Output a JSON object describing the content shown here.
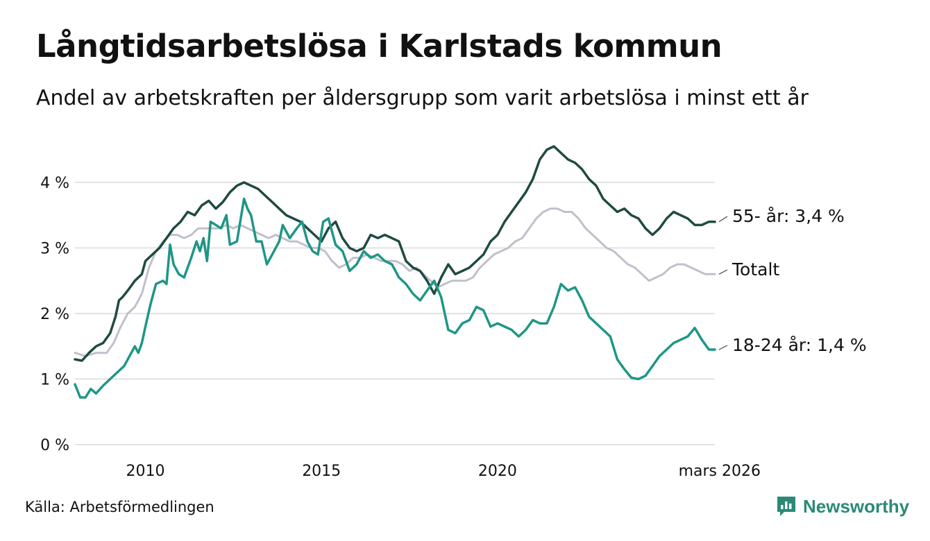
{
  "header": {
    "title": "Långtidsarbetslösa i Karlstads kommun",
    "subtitle": "Andel av arbetskraften per åldersgrupp som varit arbetslösa i minst ett år"
  },
  "footer": {
    "source": "Källa: Arbetsförmedlingen",
    "brand": "Newsworthy",
    "brand_color": "#2a8a77"
  },
  "chart_data": {
    "type": "line",
    "title": "Långtidsarbetslösa i Karlstads kommun",
    "subtitle": "Andel av arbetskraften per åldersgrupp som varit arbetslösa i minst ett år",
    "xlabel": "",
    "ylabel": "",
    "x_range": [
      2008.0,
      2026.17
    ],
    "ylim": [
      0,
      4.6
    ],
    "grid": true,
    "x_ticks": [
      {
        "value": 2010,
        "label": "2010"
      },
      {
        "value": 2015,
        "label": "2015"
      },
      {
        "value": 2020,
        "label": "2020"
      },
      {
        "value": 2026.17,
        "label": "mars 2026"
      }
    ],
    "y_ticks": [
      {
        "value": 0,
        "label": "0 %"
      },
      {
        "value": 1,
        "label": "1 %"
      },
      {
        "value": 2,
        "label": "2 %"
      },
      {
        "value": 3,
        "label": "3 %"
      },
      {
        "value": 4,
        "label": "4 %"
      }
    ],
    "series": [
      {
        "name": "Totalt",
        "label": "Totalt",
        "color": "#c2bfcc",
        "points": [
          [
            2008.0,
            1.4
          ],
          [
            2008.3,
            1.35
          ],
          [
            2008.6,
            1.4
          ],
          [
            2008.9,
            1.4
          ],
          [
            2009.1,
            1.55
          ],
          [
            2009.3,
            1.8
          ],
          [
            2009.5,
            2.0
          ],
          [
            2009.7,
            2.1
          ],
          [
            2009.9,
            2.3
          ],
          [
            2010.0,
            2.5
          ],
          [
            2010.1,
            2.7
          ],
          [
            2010.3,
            2.95
          ],
          [
            2010.5,
            3.1
          ],
          [
            2010.7,
            3.2
          ],
          [
            2010.9,
            3.2
          ],
          [
            2011.1,
            3.15
          ],
          [
            2011.3,
            3.2
          ],
          [
            2011.5,
            3.3
          ],
          [
            2011.7,
            3.3
          ],
          [
            2011.9,
            3.3
          ],
          [
            2012.1,
            3.3
          ],
          [
            2012.3,
            3.35
          ],
          [
            2012.5,
            3.3
          ],
          [
            2012.7,
            3.35
          ],
          [
            2012.9,
            3.3
          ],
          [
            2013.1,
            3.25
          ],
          [
            2013.3,
            3.2
          ],
          [
            2013.5,
            3.15
          ],
          [
            2013.7,
            3.2
          ],
          [
            2013.9,
            3.15
          ],
          [
            2014.1,
            3.1
          ],
          [
            2014.3,
            3.1
          ],
          [
            2014.5,
            3.05
          ],
          [
            2014.7,
            3.0
          ],
          [
            2014.9,
            3.0
          ],
          [
            2015.1,
            2.95
          ],
          [
            2015.3,
            2.8
          ],
          [
            2015.5,
            2.7
          ],
          [
            2015.7,
            2.75
          ],
          [
            2015.9,
            2.85
          ],
          [
            2016.1,
            2.85
          ],
          [
            2016.3,
            2.9
          ],
          [
            2016.5,
            2.85
          ],
          [
            2016.7,
            2.8
          ],
          [
            2016.9,
            2.8
          ],
          [
            2017.1,
            2.8
          ],
          [
            2017.3,
            2.75
          ],
          [
            2017.5,
            2.65
          ],
          [
            2017.7,
            2.7
          ],
          [
            2017.9,
            2.6
          ],
          [
            2018.1,
            2.5
          ],
          [
            2018.3,
            2.4
          ],
          [
            2018.5,
            2.45
          ],
          [
            2018.7,
            2.5
          ],
          [
            2018.9,
            2.5
          ],
          [
            2019.1,
            2.5
          ],
          [
            2019.3,
            2.55
          ],
          [
            2019.5,
            2.7
          ],
          [
            2019.7,
            2.8
          ],
          [
            2019.9,
            2.9
          ],
          [
            2020.1,
            2.95
          ],
          [
            2020.3,
            3.0
          ],
          [
            2020.5,
            3.1
          ],
          [
            2020.7,
            3.15
          ],
          [
            2020.9,
            3.3
          ],
          [
            2021.1,
            3.45
          ],
          [
            2021.3,
            3.55
          ],
          [
            2021.5,
            3.6
          ],
          [
            2021.7,
            3.6
          ],
          [
            2021.9,
            3.55
          ],
          [
            2022.1,
            3.55
          ],
          [
            2022.3,
            3.45
          ],
          [
            2022.5,
            3.3
          ],
          [
            2022.7,
            3.2
          ],
          [
            2022.9,
            3.1
          ],
          [
            2023.1,
            3.0
          ],
          [
            2023.3,
            2.95
          ],
          [
            2023.5,
            2.85
          ],
          [
            2023.7,
            2.75
          ],
          [
            2023.9,
            2.7
          ],
          [
            2024.1,
            2.6
          ],
          [
            2024.3,
            2.5
          ],
          [
            2024.5,
            2.55
          ],
          [
            2024.7,
            2.6
          ],
          [
            2024.9,
            2.7
          ],
          [
            2025.1,
            2.75
          ],
          [
            2025.3,
            2.75
          ],
          [
            2025.5,
            2.7
          ],
          [
            2025.7,
            2.65
          ],
          [
            2025.9,
            2.6
          ],
          [
            2026.17,
            2.6
          ]
        ]
      },
      {
        "name": "55- år",
        "label": "55- år: 3,4 %",
        "color": "#1f4a41",
        "points": [
          [
            2008.0,
            1.3
          ],
          [
            2008.2,
            1.28
          ],
          [
            2008.4,
            1.4
          ],
          [
            2008.6,
            1.5
          ],
          [
            2008.8,
            1.55
          ],
          [
            2009.0,
            1.7
          ],
          [
            2009.15,
            1.95
          ],
          [
            2009.25,
            2.2
          ],
          [
            2009.35,
            2.25
          ],
          [
            2009.5,
            2.35
          ],
          [
            2009.7,
            2.5
          ],
          [
            2009.9,
            2.6
          ],
          [
            2010.0,
            2.8
          ],
          [
            2010.2,
            2.9
          ],
          [
            2010.4,
            3.0
          ],
          [
            2010.6,
            3.15
          ],
          [
            2010.8,
            3.3
          ],
          [
            2011.0,
            3.4
          ],
          [
            2011.2,
            3.55
          ],
          [
            2011.4,
            3.5
          ],
          [
            2011.6,
            3.65
          ],
          [
            2011.8,
            3.72
          ],
          [
            2012.0,
            3.6
          ],
          [
            2012.2,
            3.7
          ],
          [
            2012.4,
            3.85
          ],
          [
            2012.6,
            3.95
          ],
          [
            2012.8,
            4.0
          ],
          [
            2013.0,
            3.95
          ],
          [
            2013.2,
            3.9
          ],
          [
            2013.4,
            3.8
          ],
          [
            2013.6,
            3.7
          ],
          [
            2013.8,
            3.6
          ],
          [
            2014.0,
            3.5
          ],
          [
            2014.2,
            3.45
          ],
          [
            2014.4,
            3.4
          ],
          [
            2014.6,
            3.3
          ],
          [
            2014.8,
            3.2
          ],
          [
            2015.0,
            3.1
          ],
          [
            2015.2,
            3.3
          ],
          [
            2015.4,
            3.4
          ],
          [
            2015.6,
            3.15
          ],
          [
            2015.8,
            3.0
          ],
          [
            2016.0,
            2.95
          ],
          [
            2016.2,
            3.0
          ],
          [
            2016.4,
            3.2
          ],
          [
            2016.6,
            3.15
          ],
          [
            2016.8,
            3.2
          ],
          [
            2017.0,
            3.15
          ],
          [
            2017.2,
            3.1
          ],
          [
            2017.4,
            2.8
          ],
          [
            2017.6,
            2.7
          ],
          [
            2017.8,
            2.65
          ],
          [
            2018.0,
            2.5
          ],
          [
            2018.2,
            2.3
          ],
          [
            2018.4,
            2.55
          ],
          [
            2018.6,
            2.75
          ],
          [
            2018.8,
            2.6
          ],
          [
            2019.0,
            2.65
          ],
          [
            2019.2,
            2.7
          ],
          [
            2019.4,
            2.8
          ],
          [
            2019.6,
            2.9
          ],
          [
            2019.8,
            3.1
          ],
          [
            2020.0,
            3.2
          ],
          [
            2020.2,
            3.4
          ],
          [
            2020.4,
            3.55
          ],
          [
            2020.6,
            3.7
          ],
          [
            2020.8,
            3.85
          ],
          [
            2021.0,
            4.05
          ],
          [
            2021.2,
            4.35
          ],
          [
            2021.4,
            4.5
          ],
          [
            2021.6,
            4.55
          ],
          [
            2021.8,
            4.45
          ],
          [
            2022.0,
            4.35
          ],
          [
            2022.2,
            4.3
          ],
          [
            2022.4,
            4.2
          ],
          [
            2022.6,
            4.05
          ],
          [
            2022.8,
            3.95
          ],
          [
            2023.0,
            3.75
          ],
          [
            2023.2,
            3.65
          ],
          [
            2023.4,
            3.55
          ],
          [
            2023.6,
            3.6
          ],
          [
            2023.8,
            3.5
          ],
          [
            2024.0,
            3.45
          ],
          [
            2024.2,
            3.3
          ],
          [
            2024.4,
            3.2
          ],
          [
            2024.6,
            3.3
          ],
          [
            2024.8,
            3.45
          ],
          [
            2025.0,
            3.55
          ],
          [
            2025.2,
            3.5
          ],
          [
            2025.4,
            3.45
          ],
          [
            2025.6,
            3.35
          ],
          [
            2025.8,
            3.35
          ],
          [
            2026.0,
            3.4
          ],
          [
            2026.17,
            3.4
          ]
        ]
      },
      {
        "name": "18-24 år",
        "label": "18-24 år: 1,4 %",
        "color": "#1e9686",
        "points": [
          [
            2008.0,
            0.92
          ],
          [
            2008.15,
            0.72
          ],
          [
            2008.3,
            0.72
          ],
          [
            2008.45,
            0.85
          ],
          [
            2008.6,
            0.78
          ],
          [
            2008.8,
            0.9
          ],
          [
            2009.0,
            1.0
          ],
          [
            2009.2,
            1.1
          ],
          [
            2009.4,
            1.2
          ],
          [
            2009.6,
            1.4
          ],
          [
            2009.7,
            1.5
          ],
          [
            2009.8,
            1.4
          ],
          [
            2009.9,
            1.55
          ],
          [
            2010.0,
            1.8
          ],
          [
            2010.15,
            2.15
          ],
          [
            2010.3,
            2.45
          ],
          [
            2010.5,
            2.5
          ],
          [
            2010.6,
            2.45
          ],
          [
            2010.7,
            3.05
          ],
          [
            2010.8,
            2.75
          ],
          [
            2010.95,
            2.6
          ],
          [
            2011.1,
            2.55
          ],
          [
            2011.3,
            2.85
          ],
          [
            2011.45,
            3.1
          ],
          [
            2011.55,
            2.95
          ],
          [
            2011.65,
            3.15
          ],
          [
            2011.75,
            2.8
          ],
          [
            2011.85,
            3.4
          ],
          [
            2012.0,
            3.35
          ],
          [
            2012.15,
            3.3
          ],
          [
            2012.3,
            3.5
          ],
          [
            2012.4,
            3.05
          ],
          [
            2012.6,
            3.1
          ],
          [
            2012.8,
            3.75
          ],
          [
            2012.9,
            3.6
          ],
          [
            2013.0,
            3.5
          ],
          [
            2013.15,
            3.1
          ],
          [
            2013.3,
            3.1
          ],
          [
            2013.45,
            2.75
          ],
          [
            2013.6,
            2.9
          ],
          [
            2013.8,
            3.1
          ],
          [
            2013.9,
            3.35
          ],
          [
            2014.1,
            3.15
          ],
          [
            2014.3,
            3.3
          ],
          [
            2014.45,
            3.4
          ],
          [
            2014.6,
            3.1
          ],
          [
            2014.75,
            2.95
          ],
          [
            2014.9,
            2.9
          ],
          [
            2015.05,
            3.4
          ],
          [
            2015.2,
            3.45
          ],
          [
            2015.4,
            3.05
          ],
          [
            2015.6,
            2.95
          ],
          [
            2015.8,
            2.65
          ],
          [
            2016.0,
            2.75
          ],
          [
            2016.2,
            2.95
          ],
          [
            2016.4,
            2.85
          ],
          [
            2016.6,
            2.9
          ],
          [
            2016.8,
            2.8
          ],
          [
            2017.0,
            2.75
          ],
          [
            2017.2,
            2.55
          ],
          [
            2017.4,
            2.45
          ],
          [
            2017.6,
            2.3
          ],
          [
            2017.8,
            2.2
          ],
          [
            2018.0,
            2.35
          ],
          [
            2018.2,
            2.5
          ],
          [
            2018.4,
            2.25
          ],
          [
            2018.6,
            1.75
          ],
          [
            2018.8,
            1.7
          ],
          [
            2019.0,
            1.85
          ],
          [
            2019.2,
            1.9
          ],
          [
            2019.4,
            2.1
          ],
          [
            2019.6,
            2.05
          ],
          [
            2019.8,
            1.8
          ],
          [
            2020.0,
            1.85
          ],
          [
            2020.2,
            1.8
          ],
          [
            2020.4,
            1.75
          ],
          [
            2020.6,
            1.65
          ],
          [
            2020.8,
            1.75
          ],
          [
            2021.0,
            1.9
          ],
          [
            2021.2,
            1.85
          ],
          [
            2021.4,
            1.85
          ],
          [
            2021.6,
            2.1
          ],
          [
            2021.8,
            2.45
          ],
          [
            2022.0,
            2.35
          ],
          [
            2022.2,
            2.4
          ],
          [
            2022.4,
            2.2
          ],
          [
            2022.6,
            1.95
          ],
          [
            2022.8,
            1.85
          ],
          [
            2023.0,
            1.75
          ],
          [
            2023.2,
            1.65
          ],
          [
            2023.4,
            1.3
          ],
          [
            2023.6,
            1.15
          ],
          [
            2023.8,
            1.02
          ],
          [
            2024.0,
            1.0
          ],
          [
            2024.2,
            1.05
          ],
          [
            2024.4,
            1.2
          ],
          [
            2024.6,
            1.35
          ],
          [
            2024.8,
            1.45
          ],
          [
            2025.0,
            1.55
          ],
          [
            2025.2,
            1.6
          ],
          [
            2025.4,
            1.65
          ],
          [
            2025.6,
            1.78
          ],
          [
            2025.8,
            1.6
          ],
          [
            2026.0,
            1.45
          ],
          [
            2026.17,
            1.45
          ]
        ]
      }
    ]
  }
}
